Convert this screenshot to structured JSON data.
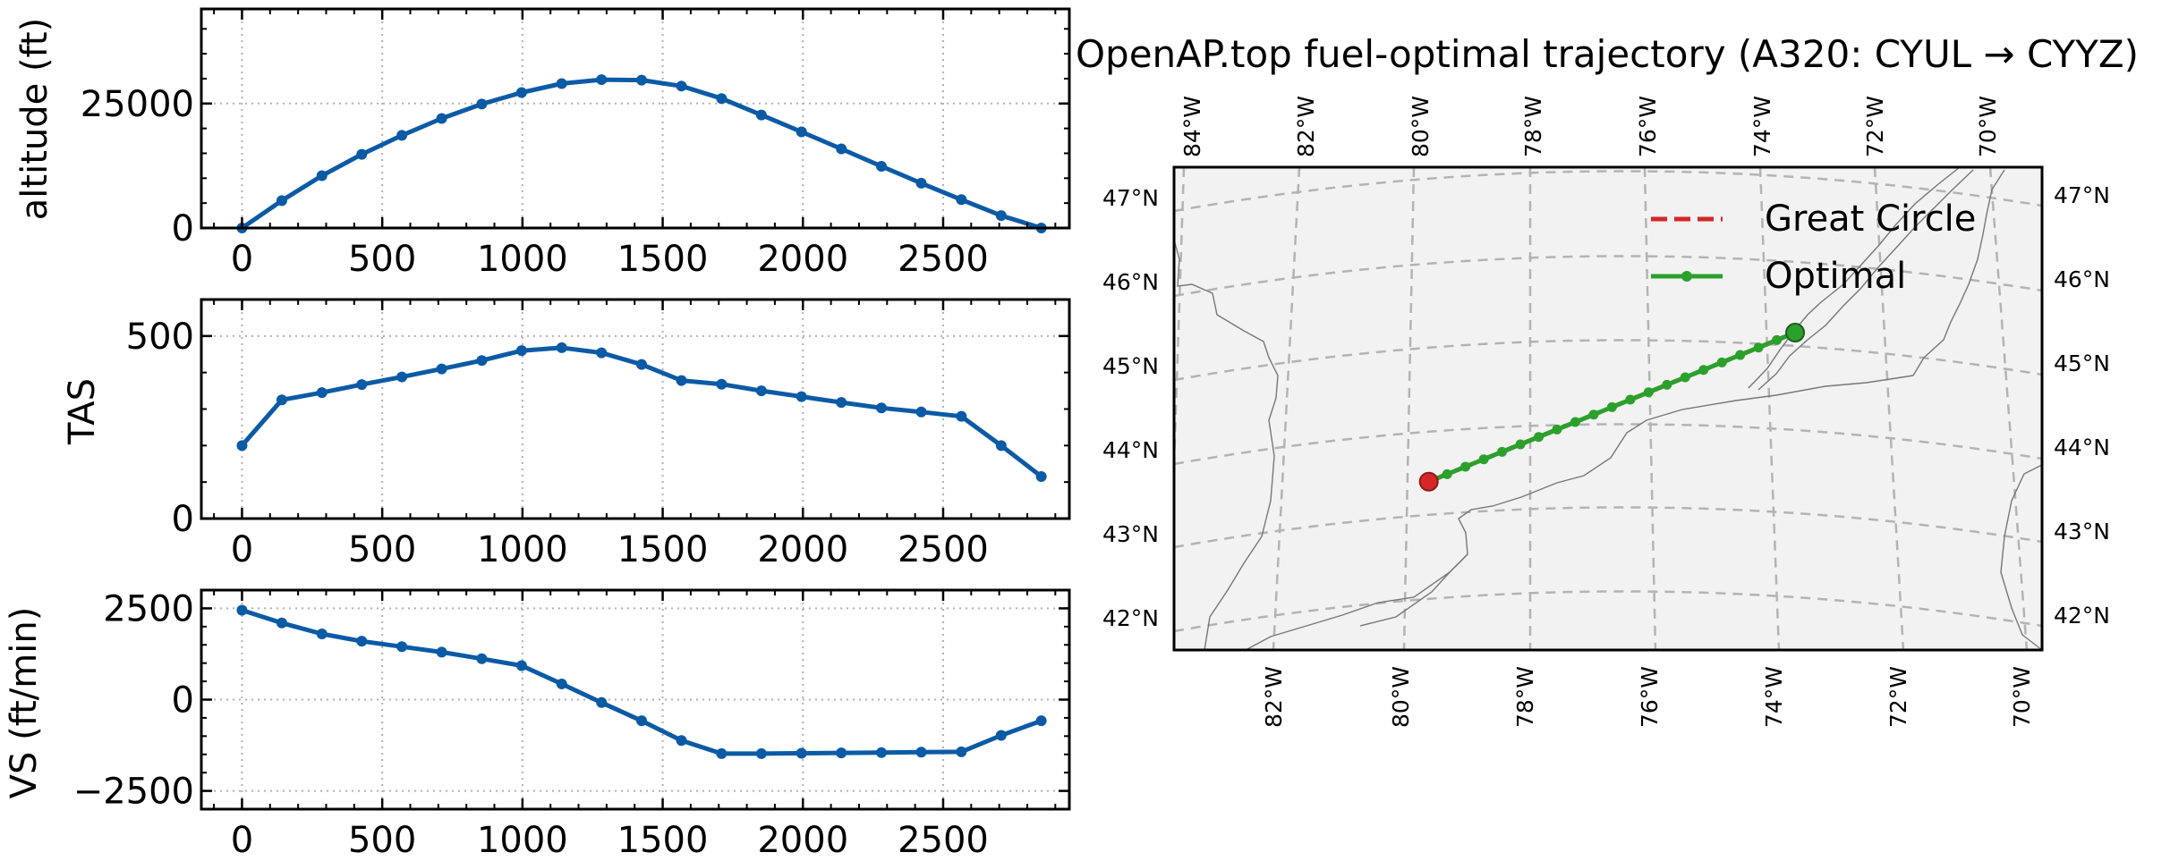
{
  "chart_data": [
    {
      "type": "line",
      "ylabel": "altitude (ft)",
      "xlabel": "",
      "xlim": [
        -145,
        2950
      ],
      "ylim": [
        0,
        44000
      ],
      "xticks": [
        0,
        500,
        1000,
        1500,
        2000,
        2500
      ],
      "yticks": [
        0,
        25000
      ],
      "x": [
        0,
        142,
        285,
        427,
        570,
        712,
        855,
        997,
        1140,
        1282,
        1425,
        1567,
        1710,
        1852,
        1995,
        2137,
        2280,
        2422,
        2565,
        2707,
        2850
      ],
      "series": [
        {
          "name": "altitude",
          "values": [
            0,
            5500,
            10500,
            14800,
            18600,
            22000,
            24900,
            27200,
            29000,
            29800,
            29700,
            28500,
            26000,
            22700,
            19300,
            15900,
            12400,
            9000,
            5700,
            2500,
            0
          ]
        }
      ],
      "color": "#0b5aa6",
      "grid": true
    },
    {
      "type": "line",
      "ylabel": "TAS",
      "xlabel": "",
      "xlim": [
        -145,
        2950
      ],
      "ylim": [
        0,
        600
      ],
      "xticks": [
        0,
        500,
        1000,
        1500,
        2000,
        2500
      ],
      "yticks": [
        0,
        500
      ],
      "x": [
        0,
        142,
        285,
        427,
        570,
        712,
        855,
        997,
        1140,
        1282,
        1425,
        1567,
        1710,
        1852,
        1995,
        2137,
        2280,
        2422,
        2565,
        2707,
        2850
      ],
      "series": [
        {
          "name": "TAS",
          "values": [
            200,
            325,
            345,
            367,
            388,
            410,
            433,
            460,
            468,
            454,
            422,
            378,
            368,
            350,
            334,
            318,
            303,
            292,
            280,
            200,
            115
          ]
        }
      ],
      "color": "#0b5aa6",
      "grid": true
    },
    {
      "type": "line",
      "ylabel": "VS (ft/min)",
      "xlabel": "",
      "xlim": [
        -145,
        2950
      ],
      "ylim": [
        -3000,
        3000
      ],
      "xticks": [
        0,
        500,
        1000,
        1500,
        2000,
        2500
      ],
      "yticks": [
        -2500,
        0,
        2500
      ],
      "x": [
        0,
        142,
        285,
        427,
        570,
        712,
        855,
        997,
        1140,
        1282,
        1425,
        1567,
        1710,
        1852,
        1995,
        2137,
        2280,
        2422,
        2565,
        2707,
        2850
      ],
      "series": [
        {
          "name": "VS",
          "values": [
            2450,
            2100,
            1800,
            1600,
            1450,
            1300,
            1120,
            930,
            430,
            -80,
            -580,
            -1120,
            -1480,
            -1480,
            -1470,
            -1460,
            -1450,
            -1440,
            -1430,
            -980,
            -580
          ]
        }
      ],
      "color": "#0b5aa6",
      "grid": true
    },
    {
      "type": "map",
      "title": "OpenAP.top fuel-optimal trajectory (A320: CYUL → CYYZ)",
      "top_lon_labels": [
        "84°W",
        "82°W",
        "80°W",
        "78°W",
        "76°W",
        "74°W",
        "72°W",
        "70°W"
      ],
      "bottom_lon_labels": [
        "82°W",
        "80°W",
        "78°W",
        "76°W",
        "74°W",
        "72°W",
        "70°W"
      ],
      "lat_labels": [
        "47°N",
        "46°N",
        "45°N",
        "44°N",
        "43°N",
        "42°N"
      ],
      "legend": [
        {
          "label": "Great Circle",
          "color": "#d62728",
          "style": "dashed"
        },
        {
          "label": "Optimal",
          "color": "#2ca02c",
          "style": "solid-marker"
        }
      ],
      "legend_position": "top-right",
      "origin": {
        "lon": -73.74,
        "lat": 45.47
      },
      "destination": {
        "lon": -79.63,
        "lat": 43.68
      },
      "optimal_points": 21
    }
  ]
}
